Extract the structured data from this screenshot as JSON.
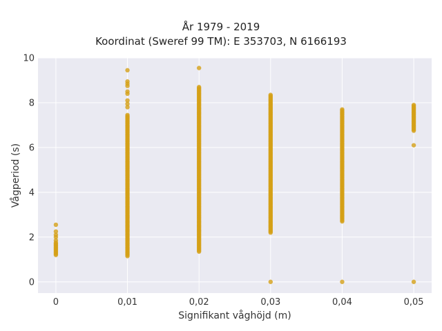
{
  "chart_data": {
    "type": "scatter",
    "title_lines": [
      "År 1979 - 2019",
      "Koordinat (Sweref 99 TM): E 353703, N 6166193"
    ],
    "xlabel": "Signifikant våghöjd (m)",
    "ylabel": "Vågperiod (s)",
    "x_ticks": [
      0,
      0.01,
      0.02,
      0.03,
      0.04,
      0.05
    ],
    "x_tick_labels": [
      "0",
      "0,01",
      "0,02",
      "0,03",
      "0,04",
      "0,05"
    ],
    "y_ticks": [
      0,
      2,
      4,
      6,
      8,
      10
    ],
    "y_tick_labels": [
      "0",
      "2",
      "4",
      "6",
      "8",
      "10"
    ],
    "xlim": [
      -0.0025,
      0.0525
    ],
    "ylim": [
      -0.5,
      10
    ],
    "grid": true,
    "marker_color": "#D4A017",
    "plot_background": "#EAEAF2",
    "series": [
      {
        "columns": [
          {
            "x": 0,
            "ranges": [
              [
                1.2,
                1.75
              ]
            ],
            "points": [
              1.85,
              2.0,
              2.1,
              2.25,
              2.55
            ]
          },
          {
            "x": 0.01,
            "ranges": [
              [
                1.15,
                7.45
              ]
            ],
            "points": [
              7.8,
              7.95,
              8.1,
              8.4,
              8.5,
              8.75,
              8.85,
              8.95,
              9.45
            ]
          },
          {
            "x": 0.02,
            "ranges": [
              [
                1.35,
                8.7
              ]
            ],
            "points": [
              9.55
            ]
          },
          {
            "x": 0.03,
            "ranges": [
              [
                2.2,
                8.35
              ]
            ],
            "points": [
              0.0
            ]
          },
          {
            "x": 0.04,
            "ranges": [
              [
                2.7,
                7.7
              ]
            ],
            "points": [
              0.0
            ]
          },
          {
            "x": 0.05,
            "ranges": [
              [
                6.75,
                7.9
              ]
            ],
            "points": [
              6.1,
              0.0
            ]
          }
        ]
      }
    ]
  }
}
